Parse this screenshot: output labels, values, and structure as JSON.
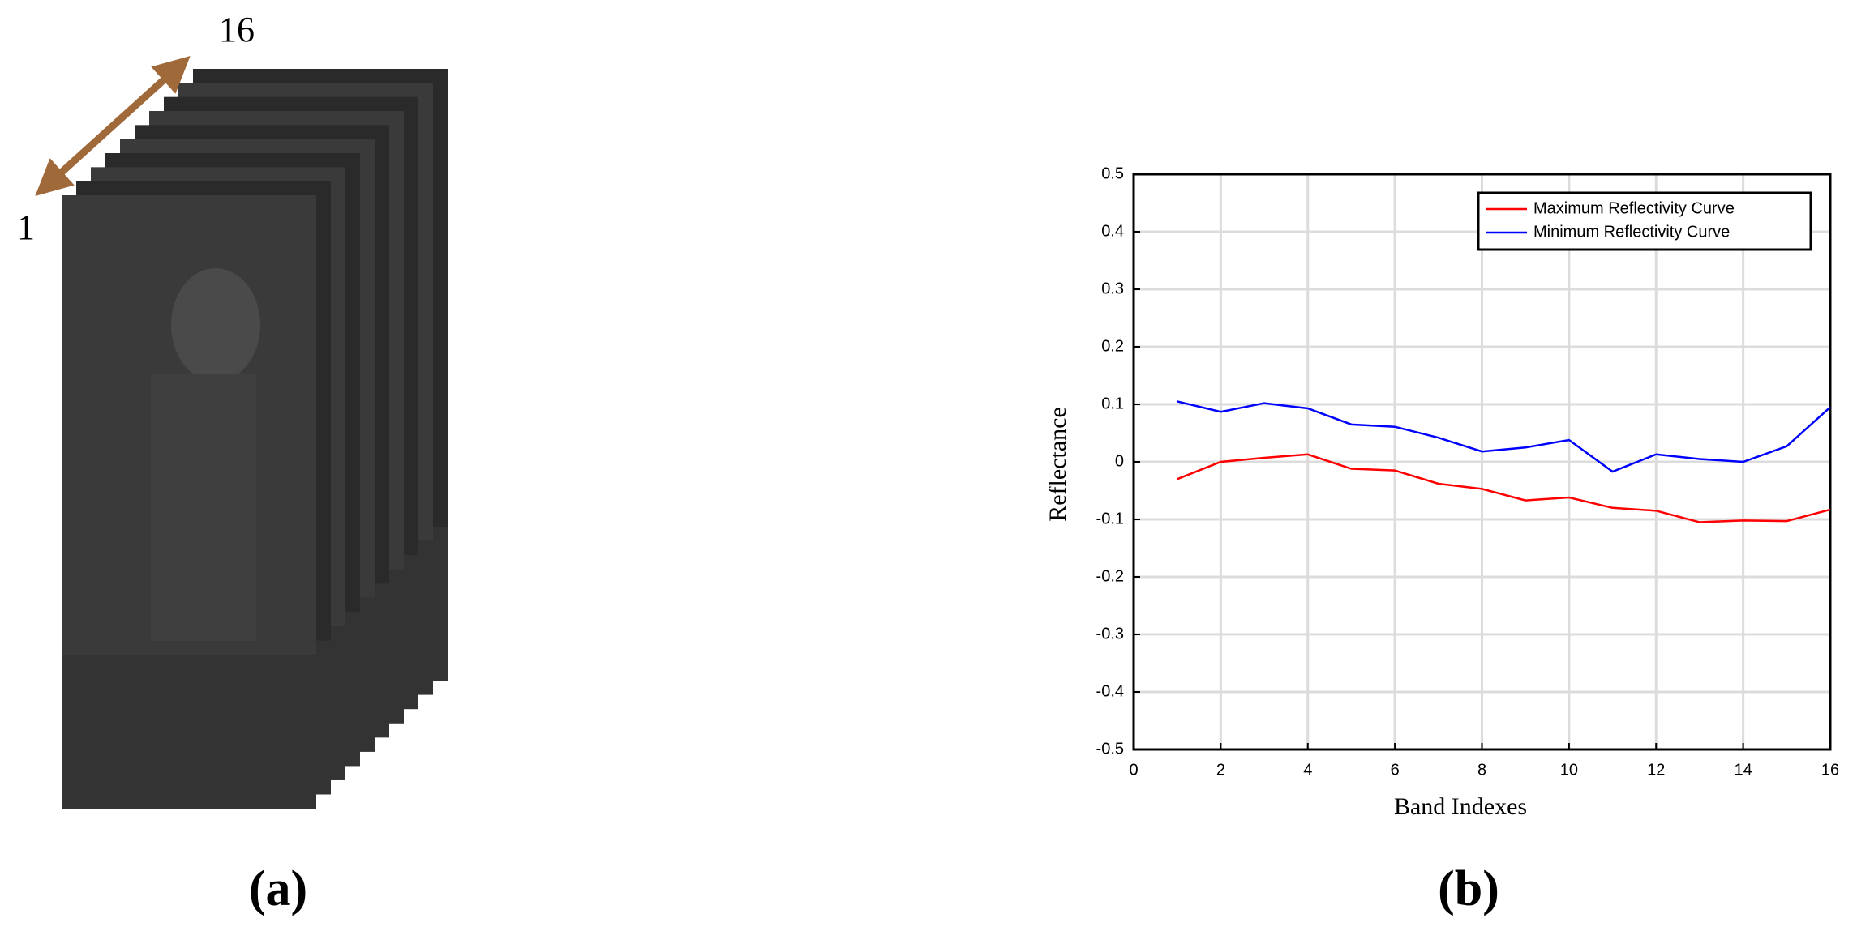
{
  "panel_a": {
    "start_label": 1,
    "end_label": 16,
    "caption": "(a)"
  },
  "chart_data": {
    "type": "line",
    "caption": "(b)",
    "xlabel": "Band Indexes",
    "ylabel": "Reflectance",
    "x": [
      1,
      2,
      3,
      4,
      5,
      6,
      7,
      8,
      9,
      10,
      11,
      12,
      13,
      14,
      15,
      16
    ],
    "series": [
      {
        "name": "Maximum Reflectivity Curve",
        "color": "#ff0000",
        "values": [
          -0.03,
          0.0,
          0.007,
          0.013,
          -0.012,
          -0.015,
          -0.038,
          -0.047,
          -0.067,
          -0.062,
          -0.08,
          -0.085,
          -0.105,
          -0.102,
          -0.103,
          -0.083
        ]
      },
      {
        "name": "Minimum Reflectivity Curve",
        "color": "#0000ff",
        "values": [
          0.105,
          0.087,
          0.102,
          0.093,
          0.065,
          0.061,
          0.042,
          0.018,
          0.025,
          0.038,
          -0.017,
          0.013,
          0.005,
          0.0,
          0.027,
          0.095
        ]
      }
    ],
    "xlim": [
      0,
      16
    ],
    "xticks": [
      0,
      2,
      4,
      6,
      8,
      10,
      12,
      14,
      16
    ],
    "ylim": [
      -0.5,
      0.5
    ],
    "yticks": [
      -0.5,
      -0.4,
      -0.3,
      -0.2,
      -0.1,
      0,
      0.1,
      0.2,
      0.3,
      0.4,
      0.5
    ],
    "grid": true,
    "legend": "upper right"
  }
}
